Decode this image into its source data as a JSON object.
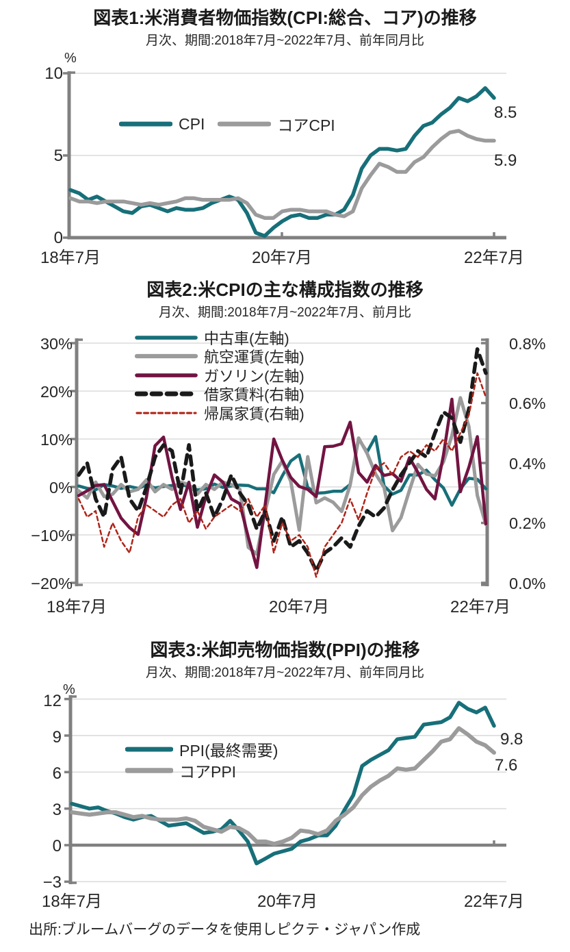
{
  "page": {
    "source_note": "出所:ブルームバーグのデータを使用しピクテ・ジャパン作成",
    "background": "#FFFFFF",
    "text_color": "#262626"
  },
  "palette": {
    "teal": "#176F79",
    "gray": "#9B9B9B",
    "maroon": "#721442",
    "black": "#1A1A1A",
    "red": "#AE2418",
    "axis_gray": "#808080",
    "grid_gray": "#DCDCDC"
  },
  "chart_data": [
    {
      "type": "line",
      "title": "図表1:米消費者物価指数(CPI:総合、コア)の推移",
      "subtitle": "月次、期間:2018年7月~2022年7月、前年同月比",
      "unit_label": "%",
      "x_range": [
        "2018-07",
        "2022-07"
      ],
      "x_tick_labels": [
        "18年7月",
        "20年7月",
        "22年7月"
      ],
      "y_tick_labels": [
        "10",
        "5",
        "0"
      ],
      "y_tick_values": [
        10,
        5,
        0
      ],
      "ylim": [
        0,
        10
      ],
      "grid": "horizontal",
      "legend_position": "inside-top",
      "series": [
        {
          "name": "CPI",
          "axis": "left",
          "color": "#176F79",
          "width": 5.5,
          "dash": "",
          "values": [
            2.9,
            2.7,
            2.3,
            2.5,
            2.2,
            1.9,
            1.6,
            1.5,
            1.9,
            2.0,
            1.8,
            1.6,
            1.8,
            1.7,
            1.7,
            1.8,
            2.1,
            2.3,
            2.5,
            2.3,
            1.5,
            0.3,
            0.1,
            0.6,
            1.0,
            1.3,
            1.4,
            1.2,
            1.2,
            1.4,
            1.4,
            1.7,
            2.6,
            4.2,
            5.0,
            5.4,
            5.4,
            5.3,
            5.4,
            6.2,
            6.8,
            7.0,
            7.5,
            7.9,
            8.5,
            8.3,
            8.6,
            9.1,
            8.5
          ]
        },
        {
          "name": "コアCPI",
          "axis": "left",
          "color": "#9B9B9B",
          "width": 5.5,
          "dash": "",
          "values": [
            2.4,
            2.2,
            2.2,
            2.1,
            2.2,
            2.2,
            2.2,
            2.1,
            2.0,
            2.1,
            2.0,
            2.1,
            2.2,
            2.4,
            2.4,
            2.3,
            2.3,
            2.3,
            2.3,
            2.4,
            2.1,
            1.4,
            1.2,
            1.2,
            1.6,
            1.7,
            1.7,
            1.6,
            1.6,
            1.6,
            1.4,
            1.3,
            1.6,
            3.0,
            3.8,
            4.5,
            4.3,
            4.0,
            4.0,
            4.6,
            4.9,
            5.5,
            6.0,
            6.4,
            6.5,
            6.2,
            6.0,
            5.9,
            5.9
          ]
        }
      ],
      "end_labels": [
        "8.5",
        "5.9"
      ]
    },
    {
      "type": "line",
      "title": "図表2:米CPIの主な構成指数の推移",
      "subtitle": "月次、期間:2018年7月~2022年7月、前月比",
      "x_range": [
        "2018-07",
        "2022-07"
      ],
      "x_tick_labels": [
        "18年7月",
        "20年7月",
        "22年7月"
      ],
      "y_tick_labels": [
        "30%",
        "20%",
        "10%",
        "0%",
        "−10%",
        "−20%"
      ],
      "y_tick_values": [
        30,
        20,
        10,
        0,
        -10,
        -20
      ],
      "ylim": [
        -20,
        30
      ],
      "right_tick_labels": [
        "0.8%",
        "0.6%",
        "0.4%",
        "0.2%",
        "0.0%"
      ],
      "right_tick_values": [
        0.8,
        0.6,
        0.4,
        0.2,
        0.0
      ],
      "right_ylim": [
        0,
        0.8
      ],
      "grid": "horizontal",
      "legend_position": "inside-top",
      "series": [
        {
          "name": "中古車(左軸)",
          "axis": "left",
          "color": "#176F79",
          "width": 4.5,
          "dash": "",
          "values": [
            0.2,
            -0.3,
            -0.6,
            0.5,
            0.2,
            -0.3,
            0.1,
            -0.3,
            0.4,
            -0.2,
            0.1,
            0.3,
            0.5,
            0.1,
            -0.6,
            -0.4,
            0.6,
            -0.1,
            0.2,
            0.4,
            0.3,
            -0.4,
            -0.4,
            -1.2,
            2.3,
            5.4,
            6.7,
            -0.1,
            -1.3,
            -1.2,
            -0.9,
            -0.9,
            0.5,
            10.0,
            7.3,
            10.5,
            0.2,
            -1.5,
            -0.7,
            2.5,
            2.5,
            3.5,
            1.5,
            -0.2,
            -3.8,
            -0.4,
            1.8,
            1.6,
            -0.4
          ]
        },
        {
          "name": "航空運賃(左軸)",
          "axis": "left",
          "color": "#9B9B9B",
          "width": 5,
          "dash": "",
          "values": [
            -0.8,
            -2.3,
            1.0,
            -2.0,
            -1.5,
            0.5,
            -1.0,
            -0.5,
            1.5,
            -1.0,
            0.5,
            -0.5,
            1.0,
            0.5,
            -1.5,
            0.5,
            -0.5,
            1.0,
            0.5,
            -0.5,
            -12.6,
            -14.0,
            -5.0,
            2.6,
            5.4,
            1.2,
            -9.0,
            6.3,
            -3.3,
            -2.3,
            -3.2,
            -5.1,
            0.4,
            10.2,
            7.0,
            2.7,
            -0.1,
            -9.1,
            -6.4,
            -0.7,
            4.7,
            2.7,
            2.3,
            5.2,
            10.7,
            18.6,
            12.6,
            -1.8,
            -7.8
          ]
        },
        {
          "name": "ガソリン(左軸)",
          "axis": "left",
          "color": "#721442",
          "width": 4.5,
          "dash": "",
          "values": [
            -1.8,
            -0.8,
            0.3,
            0.5,
            -3.0,
            -6.5,
            -8.5,
            -9.9,
            -2.0,
            8.6,
            10.4,
            2.0,
            -4.7,
            1.0,
            -8.4,
            -2.0,
            2.5,
            1.0,
            -2.5,
            -3.5,
            -10.5,
            -16.8,
            -3.5,
            10.0,
            5.6,
            2.0,
            0.1,
            -0.5,
            -2.0,
            8.4,
            8.5,
            9.0,
            13.5,
            3.0,
            1.0,
            4.5,
            2.4,
            2.8,
            1.2,
            6.1,
            3.0,
            -0.5,
            -2.5,
            6.6,
            18.3,
            -1.0,
            4.1,
            10.5,
            -7.7
          ]
        },
        {
          "name": "借家賃料(右軸)",
          "axis": "right",
          "color": "#1A1A1A",
          "width": 5.5,
          "dash": "13 9",
          "values": [
            0.36,
            0.4,
            0.28,
            0.22,
            0.38,
            0.42,
            0.28,
            0.24,
            0.32,
            0.42,
            0.46,
            0.44,
            0.3,
            0.46,
            0.24,
            0.3,
            0.22,
            0.28,
            0.36,
            0.3,
            0.26,
            0.18,
            0.24,
            0.14,
            0.22,
            0.12,
            0.14,
            0.1,
            0.04,
            0.1,
            0.12,
            0.15,
            0.12,
            0.19,
            0.24,
            0.22,
            0.25,
            0.31,
            0.36,
            0.4,
            0.44,
            0.42,
            0.5,
            0.57,
            0.55,
            0.47,
            0.58,
            0.78,
            0.7
          ]
        },
        {
          "name": "帰属家賃(右軸)",
          "axis": "right",
          "color": "#AE2418",
          "width": 2.5,
          "dash": "6 4.5",
          "values": [
            0.28,
            0.22,
            0.24,
            0.12,
            0.2,
            0.14,
            0.1,
            0.22,
            0.26,
            0.24,
            0.22,
            0.26,
            0.28,
            0.2,
            0.24,
            0.18,
            0.22,
            0.24,
            0.26,
            0.24,
            0.28,
            0.22,
            0.26,
            0.1,
            0.2,
            0.14,
            0.16,
            0.12,
            0.02,
            0.12,
            0.16,
            0.2,
            0.28,
            0.21,
            0.3,
            0.38,
            0.4,
            0.36,
            0.42,
            0.44,
            0.42,
            0.46,
            0.44,
            0.48,
            0.44,
            0.5,
            0.56,
            0.7,
            0.62
          ]
        }
      ]
    },
    {
      "type": "line",
      "title": "図表3:米卸売物価指数(PPI)の推移",
      "subtitle": "月次、期間:2018年7月~2022年7月、前年同月比",
      "unit_label": "%",
      "x_range": [
        "2018-07",
        "2022-07"
      ],
      "x_tick_labels": [
        "18年7月",
        "20年7月",
        "22年7月"
      ],
      "y_tick_labels": [
        "12",
        "9",
        "6",
        "3",
        "0",
        "−3"
      ],
      "y_tick_values": [
        12,
        9,
        6,
        3,
        0,
        -3
      ],
      "ylim": [
        -3,
        12
      ],
      "grid": "horizontal",
      "legend_position": "inside-left",
      "series": [
        {
          "name": "PPI(最終需要)",
          "axis": "left",
          "color": "#176F79",
          "width": 5.5,
          "dash": "",
          "values": [
            3.4,
            3.2,
            3.0,
            3.1,
            2.8,
            2.6,
            2.3,
            2.1,
            2.3,
            2.4,
            2.0,
            1.6,
            1.7,
            1.8,
            1.4,
            1.0,
            1.1,
            1.3,
            2.0,
            1.2,
            0.3,
            -1.5,
            -1.1,
            -0.7,
            -0.5,
            -0.3,
            0.3,
            0.5,
            0.8,
            0.8,
            1.6,
            2.9,
            4.1,
            6.5,
            7.0,
            7.4,
            7.8,
            8.7,
            8.8,
            8.9,
            9.9,
            10.0,
            10.1,
            10.5,
            11.7,
            11.2,
            10.9,
            11.3,
            9.8
          ]
        },
        {
          "name": "コアPPI",
          "axis": "left",
          "color": "#9B9B9B",
          "width": 6,
          "dash": "",
          "values": [
            2.7,
            2.6,
            2.5,
            2.6,
            2.7,
            2.7,
            2.5,
            2.3,
            2.4,
            2.2,
            2.1,
            2.1,
            2.1,
            2.2,
            2.0,
            1.5,
            1.3,
            1.1,
            1.5,
            1.4,
            1.0,
            0.3,
            0.3,
            0.1,
            0.3,
            0.6,
            1.2,
            1.1,
            0.9,
            1.2,
            2.0,
            2.5,
            3.1,
            4.1,
            4.8,
            5.3,
            5.7,
            6.3,
            6.2,
            6.3,
            7.0,
            7.7,
            8.5,
            8.7,
            9.6,
            9.1,
            8.5,
            8.2,
            7.6
          ]
        }
      ],
      "end_labels": [
        "9.8",
        "7.6"
      ]
    }
  ]
}
